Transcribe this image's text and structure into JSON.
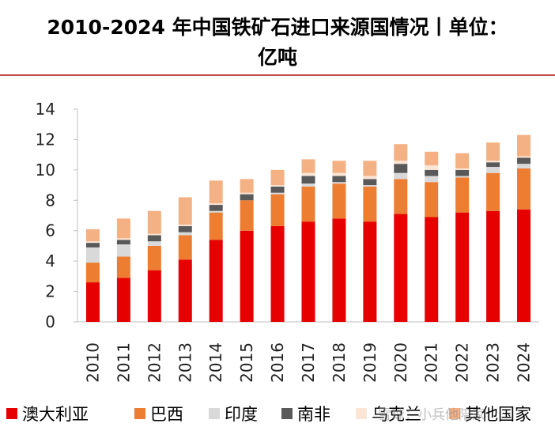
{
  "header": {
    "title_line1": "2010-2024 年中国铁矿石进口来源国情况丨单位：",
    "title_line2": "亿吨"
  },
  "colors": {
    "rule": "#c0504d",
    "axis": "#bfbfbf"
  },
  "watermark": "雪球：小兵他陪家",
  "chart_data": {
    "type": "bar",
    "stacked": true,
    "categories": [
      "2010",
      "2011",
      "2012",
      "2013",
      "2014",
      "2015",
      "2016",
      "2017",
      "2018",
      "2019",
      "2020",
      "2021",
      "2022",
      "2023",
      "2024"
    ],
    "ylim": [
      0,
      14
    ],
    "yticks": [
      0,
      2,
      4,
      6,
      8,
      10,
      12,
      14
    ],
    "grid": false,
    "legend_position": "bottom",
    "series": [
      {
        "name": "澳大利亚",
        "color": "#e60000",
        "values": [
          2.6,
          2.9,
          3.4,
          4.1,
          5.4,
          6.0,
          6.3,
          6.6,
          6.8,
          6.6,
          7.1,
          6.9,
          7.2,
          7.3,
          7.4
        ]
      },
      {
        "name": "巴西",
        "color": "#ed7d31",
        "values": [
          1.3,
          1.4,
          1.6,
          1.6,
          1.8,
          2.0,
          2.1,
          2.3,
          2.3,
          2.3,
          2.3,
          2.3,
          2.3,
          2.5,
          2.7
        ]
      },
      {
        "name": "印度",
        "color": "#d9d9d9",
        "values": [
          1.0,
          0.8,
          0.3,
          0.2,
          0.1,
          0.0,
          0.1,
          0.2,
          0.1,
          0.1,
          0.4,
          0.4,
          0.1,
          0.4,
          0.3
        ]
      },
      {
        "name": "南非",
        "color": "#595959",
        "values": [
          0.3,
          0.3,
          0.4,
          0.4,
          0.4,
          0.4,
          0.4,
          0.5,
          0.4,
          0.4,
          0.6,
          0.4,
          0.4,
          0.3,
          0.4
        ]
      },
      {
        "name": "乌克兰",
        "color": "#fbe5d6",
        "values": [
          0.1,
          0.1,
          0.1,
          0.1,
          0.1,
          0.1,
          0.1,
          0.2,
          0.2,
          0.2,
          0.2,
          0.3,
          0.1,
          0.1,
          0.1
        ]
      },
      {
        "name": "其他国家",
        "color": "#f4b183",
        "values": [
          0.8,
          1.3,
          1.5,
          1.8,
          1.5,
          0.9,
          1.0,
          0.9,
          0.8,
          1.0,
          1.1,
          0.9,
          1.0,
          1.2,
          1.4
        ]
      }
    ]
  }
}
